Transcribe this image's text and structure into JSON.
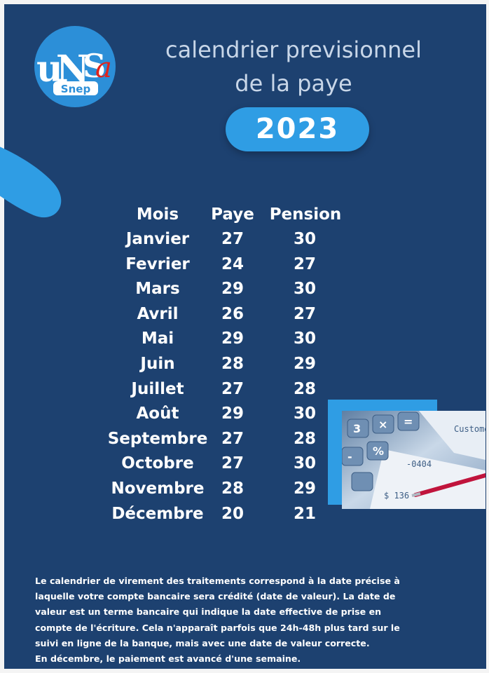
{
  "logo": {
    "brand": "UNSA",
    "sub": "Snep",
    "icon": "unsa-logo-icon",
    "colors": {
      "circle": "#2c8fd8",
      "red": "#e2231a",
      "white": "#ffffff"
    }
  },
  "title": {
    "line1": "calendrier previsionnel",
    "line2": "de la paye",
    "year": "2023"
  },
  "table": {
    "headers": {
      "month": "Mois",
      "paye": "Paye",
      "pension": "Pension"
    },
    "rows": [
      {
        "month": "Janvier",
        "paye": "27",
        "pension": "30"
      },
      {
        "month": "Fevrier",
        "paye": "24",
        "pension": "27"
      },
      {
        "month": "Mars",
        "paye": "29",
        "pension": "30"
      },
      {
        "month": "Avril",
        "paye": "26",
        "pension": "27"
      },
      {
        "month": "Mai",
        "paye": "29",
        "pension": "30"
      },
      {
        "month": "Juin",
        "paye": "28",
        "pension": "29"
      },
      {
        "month": "Juillet",
        "paye": "27",
        "pension": "28"
      },
      {
        "month": "Août",
        "paye": "29",
        "pension": "30"
      },
      {
        "month": "Septembre",
        "paye": "27",
        "pension": "28"
      },
      {
        "month": "Octobre",
        "paye": "27",
        "pension": "30"
      },
      {
        "month": "Novembre",
        "paye": "28",
        "pension": "29"
      },
      {
        "month": "Décembre",
        "paye": "20",
        "pension": "21"
      }
    ]
  },
  "photo": {
    "icon": "calculator-photo-icon"
  },
  "footer": {
    "lines": [
      "Le calendrier de virement des traitements correspond à la date précise à",
      "laquelle votre compte bancaire sera crédité (date de valeur). La date de",
      "valeur est un terme bancaire qui indique la date effective de prise en",
      "compte de l'écriture. Cela n'apparaît parfois que 24h-48h plus tard sur le",
      "suivi en ligne de la banque, mais avec une date de valeur correcte.",
      "En décembre, le paiement est avancé d'une semaine."
    ]
  },
  "colors": {
    "background": "#1d4170",
    "accent": "#2f9de4",
    "title": "#c8d6e8"
  }
}
